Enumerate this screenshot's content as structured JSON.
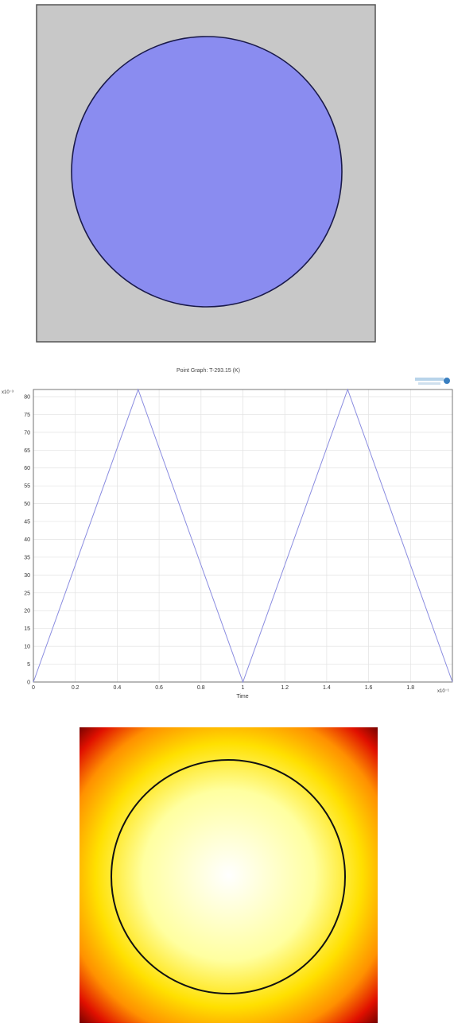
{
  "geometry_view": {
    "background_color": "#c8c8c8",
    "frame_color": "#555555",
    "domain_fill": "#8a8cf0",
    "domain_outline": "#1a1a4a"
  },
  "chart_data": {
    "type": "line",
    "title": "Point Graph: T-293.15 (K)",
    "xlabel": "Time",
    "ylabel": "",
    "x_exponent_label": "x10⁻¹",
    "y_exponent_label": "x10⁻³",
    "xlim": [
      0,
      2
    ],
    "ylim": [
      0,
      82
    ],
    "xticks": [
      "0",
      "0.2",
      "0.4",
      "0.6",
      "0.8",
      "1",
      "1.2",
      "1.4",
      "1.6",
      "1.8"
    ],
    "yticks": [
      "0",
      "5",
      "10",
      "15",
      "20",
      "25",
      "30",
      "35",
      "40",
      "45",
      "50",
      "55",
      "60",
      "65",
      "70",
      "75",
      "80"
    ],
    "grid": true,
    "line_color": "#8a8ce0",
    "series": [
      {
        "x": [
          0,
          0.5,
          1.0,
          1.5,
          2.0
        ],
        "y": [
          0,
          82,
          0,
          82,
          0
        ]
      }
    ]
  },
  "temperature_view": {
    "colormap": [
      "#ffffff",
      "#ffffa0",
      "#ffe000",
      "#ff9000",
      "#e01000",
      "#600000"
    ],
    "domain_outline": "#111111"
  }
}
